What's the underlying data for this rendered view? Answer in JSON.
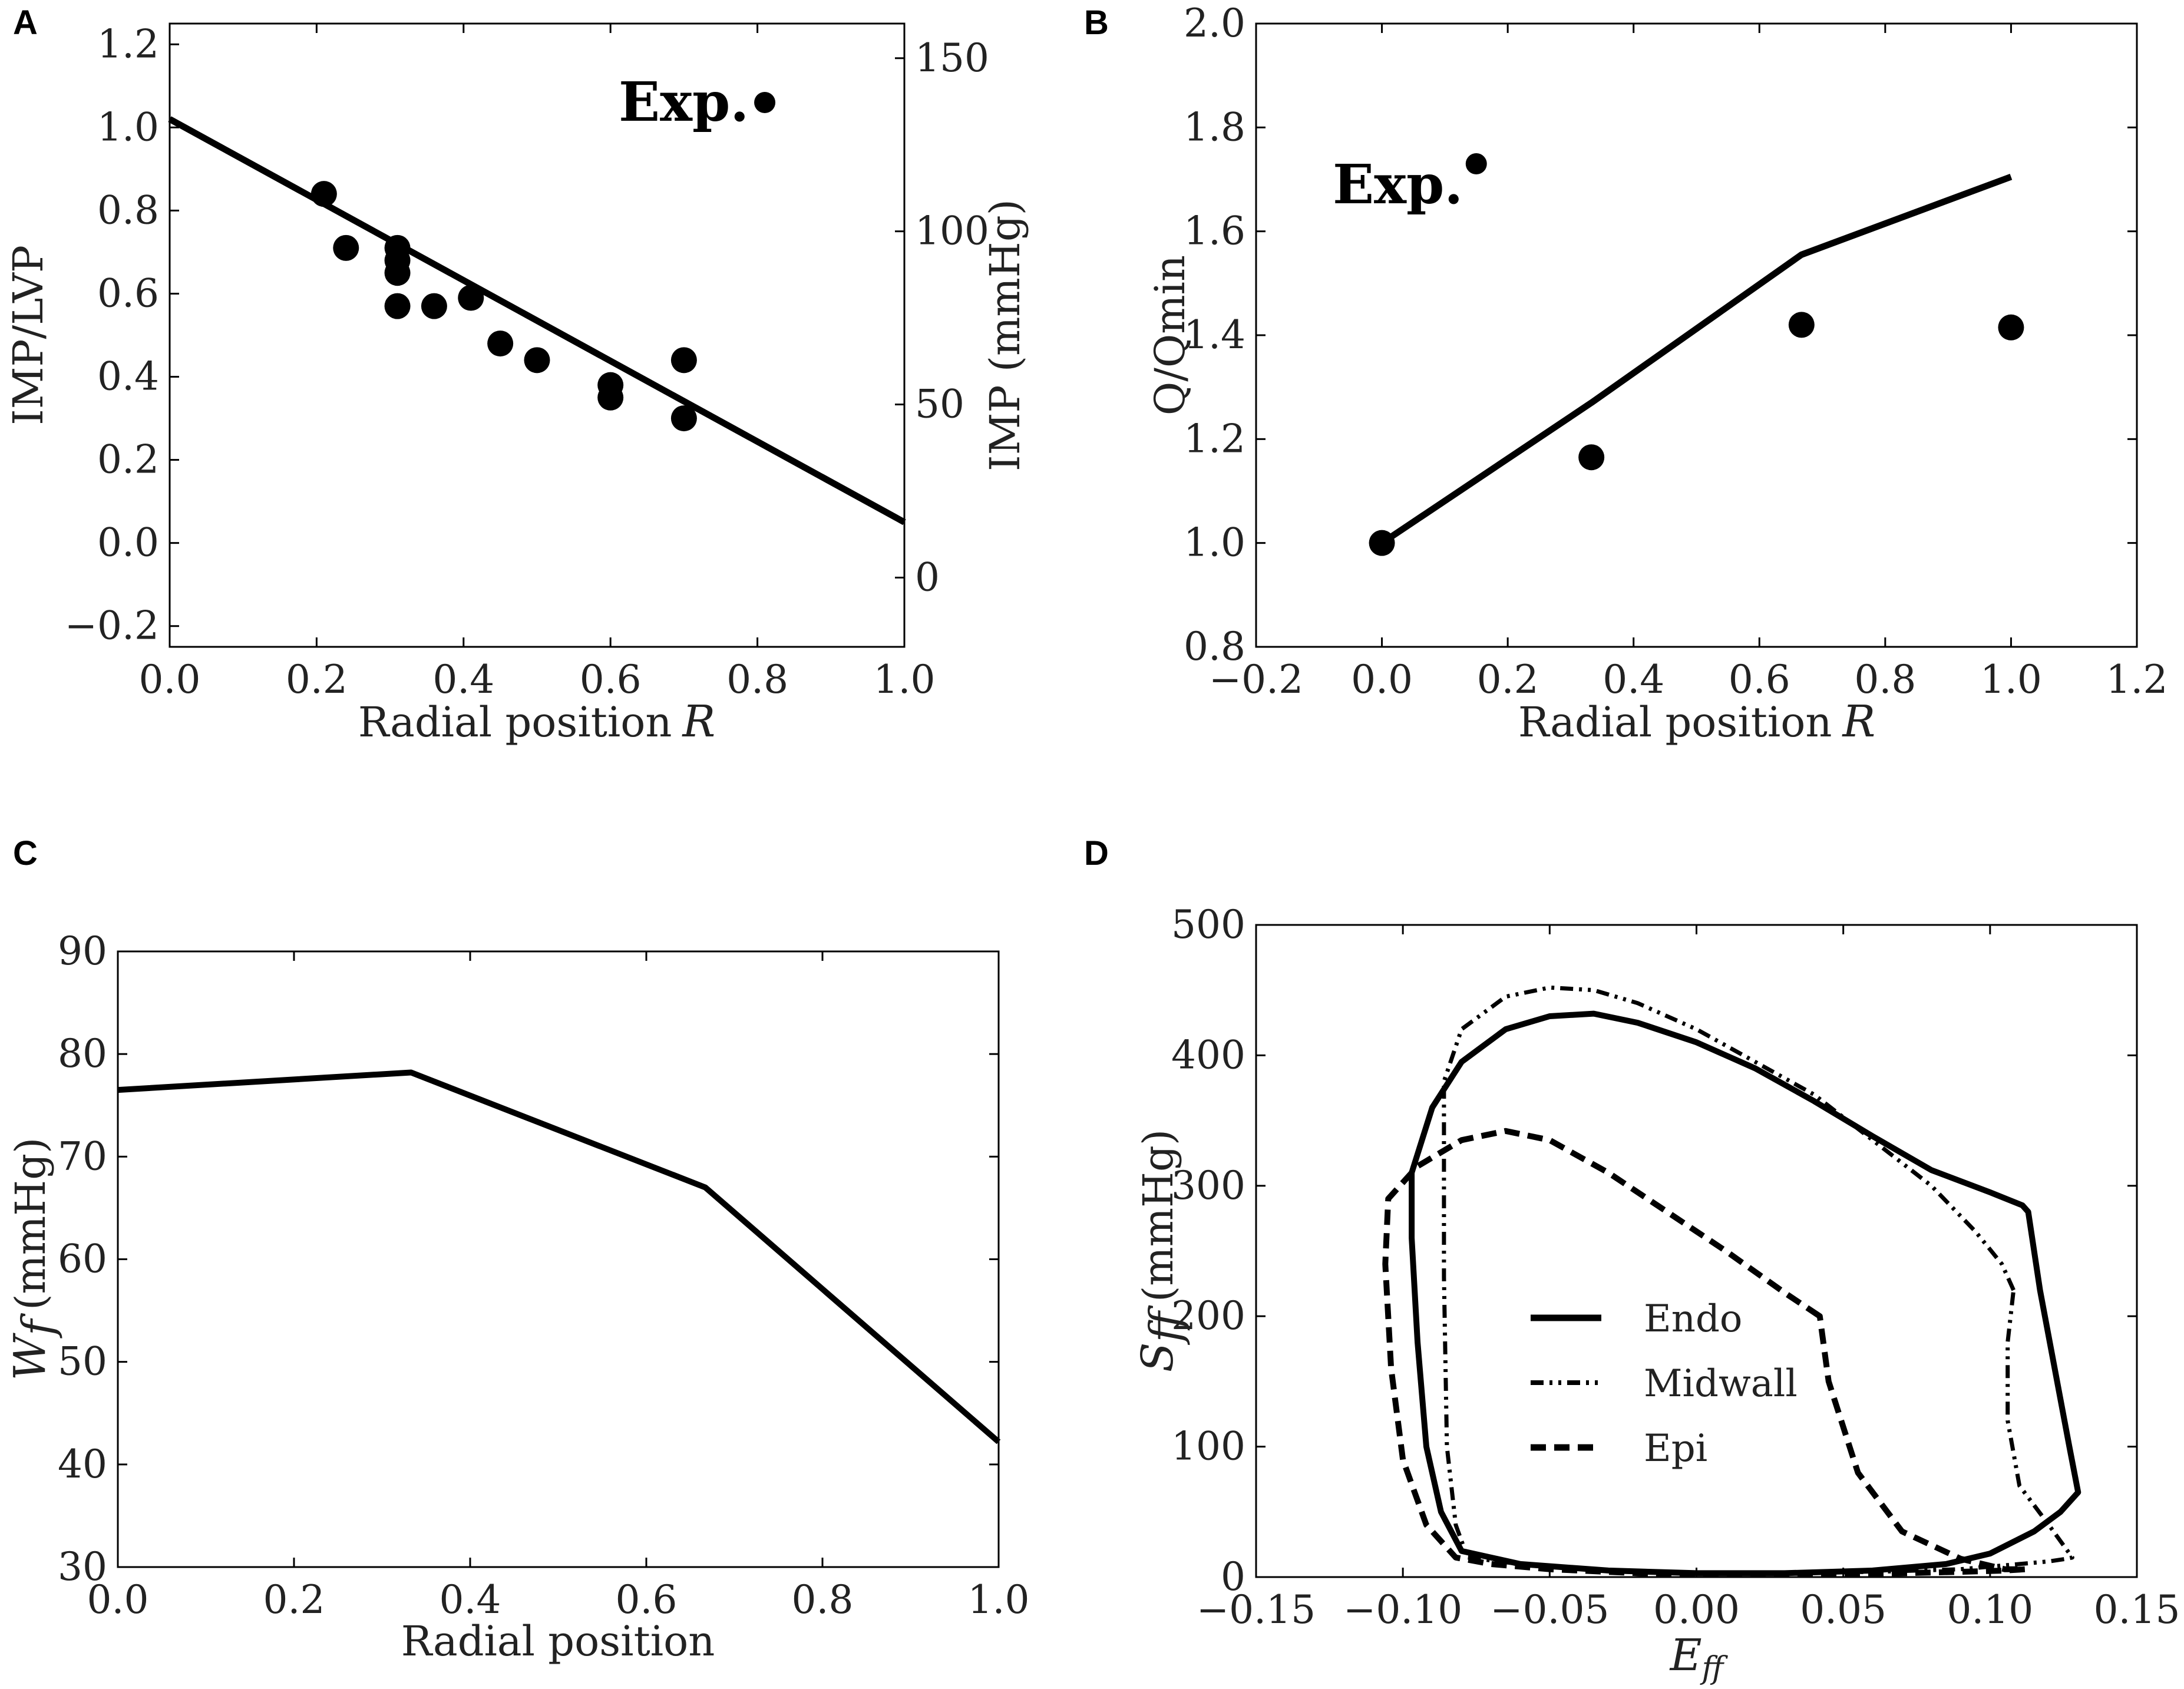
{
  "chart_data": [
    {
      "panel": "A",
      "type": "scatter",
      "xlabel": "Radial position",
      "xlabel_var": "R",
      "ylabel": "IMP/LVP",
      "y2label": "IMP (mmHg)",
      "xlim": [
        0.0,
        1.0
      ],
      "ylim": [
        -0.25,
        1.25
      ],
      "y2lim": [
        -20,
        160
      ],
      "xticks": [
        "0.0",
        "0.2",
        "0.4",
        "0.6",
        "0.8",
        "1.0"
      ],
      "yticks": [
        "−0.2",
        "0.0",
        "0.2",
        "0.4",
        "0.6",
        "0.8",
        "1.0",
        "1.2"
      ],
      "y2ticks": [
        "0",
        "50",
        "100",
        "150"
      ],
      "annotation": "Exp.",
      "annotation_marker": {
        "x": 0.81,
        "y": 1.06
      },
      "line": {
        "x": [
          0.0,
          1.0
        ],
        "y": [
          1.02,
          0.05
        ]
      },
      "points": {
        "x": [
          0.21,
          0.24,
          0.31,
          0.31,
          0.31,
          0.31,
          0.36,
          0.41,
          0.45,
          0.5,
          0.6,
          0.6,
          0.7,
          0.7
        ],
        "y": [
          0.84,
          0.71,
          0.71,
          0.68,
          0.65,
          0.57,
          0.57,
          0.59,
          0.48,
          0.44,
          0.38,
          0.35,
          0.44,
          0.3
        ]
      }
    },
    {
      "panel": "B",
      "type": "scatter",
      "xlabel": "Radial position",
      "xlabel_var": "R",
      "ylabel": "Q/Qmin",
      "xlim": [
        -0.2,
        1.2
      ],
      "ylim": [
        0.8,
        2.0
      ],
      "xticks": [
        "−0.2",
        "0.0",
        "0.2",
        "0.4",
        "0.6",
        "0.8",
        "1.0",
        "1.2"
      ],
      "yticks": [
        "0.8",
        "1.0",
        "1.2",
        "1.4",
        "1.6",
        "1.8",
        "2.0"
      ],
      "annotation": "Exp.",
      "annotation_marker": {
        "x": 0.15,
        "y": 1.73
      },
      "line": {
        "x": [
          0.0,
          0.333,
          0.667,
          1.0
        ],
        "y": [
          1.0,
          1.27,
          1.555,
          1.705
        ]
      },
      "points": {
        "x": [
          0.0,
          0.333,
          0.667,
          1.0
        ],
        "y": [
          1.0,
          1.165,
          1.42,
          1.415
        ]
      }
    },
    {
      "panel": "C",
      "type": "line",
      "xlabel": "Radial position",
      "ylabel_var": "W",
      "ylabel_sub": "f",
      "ylabel_unit": "(mmHg)",
      "xlim": [
        0.0,
        1.0
      ],
      "ylim": [
        30,
        90
      ],
      "xticks": [
        "0.0",
        "0.2",
        "0.4",
        "0.6",
        "0.8",
        "1.0"
      ],
      "yticks": [
        "30",
        "40",
        "50",
        "60",
        "70",
        "80",
        "90"
      ],
      "series": [
        {
          "name": "Wf",
          "x": [
            0.0,
            0.333,
            0.667,
            1.0
          ],
          "y": [
            76.5,
            78.2,
            67.0,
            42.2
          ]
        }
      ]
    },
    {
      "panel": "D",
      "type": "line",
      "xlabel_var": "E",
      "xlabel_sub": "ff",
      "ylabel_var": "S",
      "ylabel_sub": "ff",
      "ylabel_unit": "(mmHg)",
      "xlim": [
        -0.15,
        0.15
      ],
      "ylim": [
        0,
        500
      ],
      "xticks": [
        "−0.15",
        "−0.10",
        "−0.05",
        "0.00",
        "0.05",
        "0.10",
        "0.15"
      ],
      "yticks": [
        "0",
        "100",
        "200",
        "300",
        "400",
        "500"
      ],
      "legend_position": "center",
      "series": [
        {
          "name": "Endo",
          "style": "solid",
          "x": [
            0.113,
            0.111,
            0.1,
            0.08,
            0.06,
            0.04,
            0.02,
            0.0,
            -0.02,
            -0.035,
            -0.05,
            -0.065,
            -0.08,
            -0.09,
            -0.097,
            -0.097,
            -0.095,
            -0.092,
            -0.087,
            -0.08,
            -0.06,
            -0.03,
            0.0,
            0.03,
            0.06,
            0.085,
            0.1,
            0.115,
            0.124,
            0.13,
            0.127,
            0.122,
            0.117,
            0.114,
            0.113
          ],
          "y": [
            280,
            285,
            295,
            312,
            338,
            365,
            390,
            410,
            425,
            432,
            430,
            420,
            395,
            360,
            310,
            260,
            180,
            100,
            50,
            20,
            10,
            5,
            3,
            3,
            5,
            10,
            18,
            35,
            50,
            65,
            100,
            160,
            220,
            265,
            280
          ]
        },
        {
          "name": "Midwall",
          "style": "dashdotdot",
          "x": [
            0.108,
            0.104,
            0.095,
            0.08,
            0.06,
            0.04,
            0.02,
            0.0,
            -0.02,
            -0.035,
            -0.05,
            -0.065,
            -0.08,
            -0.086,
            -0.086,
            -0.086,
            -0.085,
            -0.082,
            -0.078,
            -0.06,
            -0.03,
            0.0,
            0.03,
            0.06,
            0.09,
            0.11,
            0.12,
            0.126,
            0.128,
            0.12,
            0.11,
            0.106,
            0.106,
            0.108
          ],
          "y": [
            220,
            240,
            265,
            300,
            335,
            370,
            395,
            420,
            440,
            450,
            452,
            445,
            420,
            380,
            340,
            230,
            100,
            40,
            15,
            10,
            5,
            3,
            3,
            4,
            6,
            10,
            12,
            14,
            15,
            40,
            70,
            120,
            180,
            220
          ]
        },
        {
          "name": "Epi",
          "style": "dashed",
          "x": [
            0.042,
            0.03,
            0.01,
            -0.01,
            -0.03,
            -0.05,
            -0.065,
            -0.08,
            -0.095,
            -0.105,
            -0.106,
            -0.104,
            -0.1,
            -0.092,
            -0.082,
            -0.07,
            -0.05,
            -0.02,
            0.01,
            0.04,
            0.07,
            0.09,
            0.105,
            0.112,
            0.105,
            0.09,
            0.07,
            0.055,
            0.045,
            0.042
          ],
          "y": [
            200,
            218,
            250,
            280,
            310,
            335,
            342,
            335,
            315,
            290,
            240,
            160,
            90,
            40,
            15,
            10,
            6,
            3,
            2,
            2,
            3,
            4,
            5,
            6,
            6,
            14,
            35,
            80,
            150,
            200
          ]
        }
      ]
    }
  ]
}
